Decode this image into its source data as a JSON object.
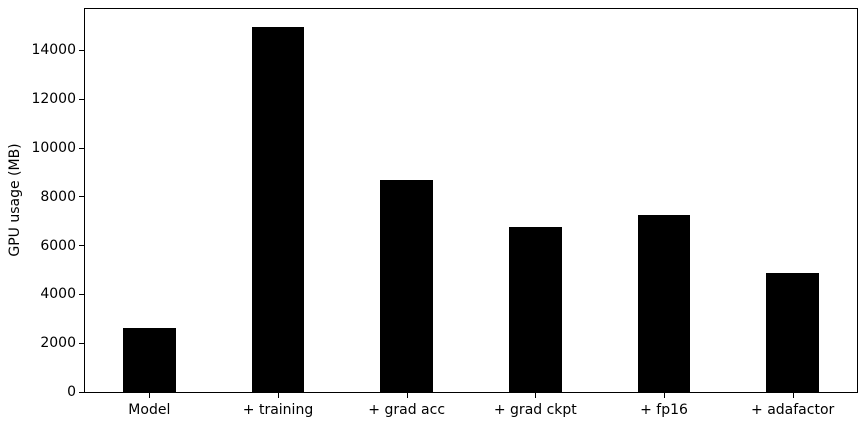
{
  "chart_data": {
    "type": "bar",
    "categories": [
      "Model",
      "+ training",
      "+ grad acc",
      "+ grad ckpt",
      "+ fp16",
      "+ adafactor"
    ],
    "values": [
      2631,
      14949,
      8681,
      6775,
      7275,
      4869
    ],
    "title": "",
    "xlabel": "",
    "ylabel": "GPU usage (MB)",
    "ylim": [
      0,
      15700
    ],
    "yticks": [
      0,
      2000,
      4000,
      6000,
      8000,
      10000,
      12000,
      14000
    ],
    "bar_color": "#000000",
    "bar_width_fraction": 0.41,
    "background": "#ffffff",
    "axis_color": "#000000",
    "grid": false,
    "legend": null
  }
}
